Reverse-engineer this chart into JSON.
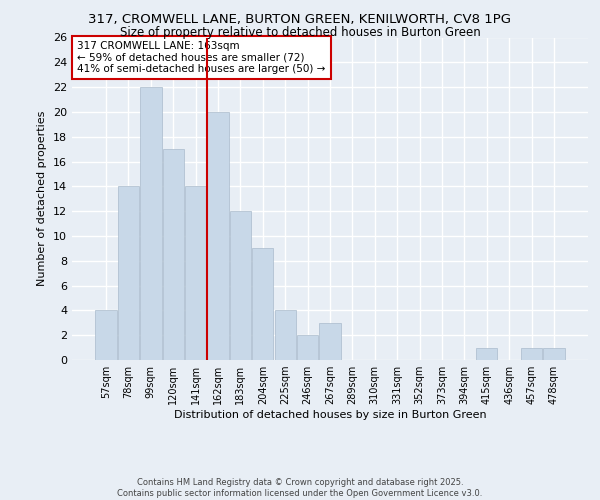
{
  "title1": "317, CROMWELL LANE, BURTON GREEN, KENILWORTH, CV8 1PG",
  "title2": "Size of property relative to detached houses in Burton Green",
  "xlabel": "Distribution of detached houses by size in Burton Green",
  "ylabel": "Number of detached properties",
  "categories": [
    "57sqm",
    "78sqm",
    "99sqm",
    "120sqm",
    "141sqm",
    "162sqm",
    "183sqm",
    "204sqm",
    "225sqm",
    "246sqm",
    "267sqm",
    "289sqm",
    "310sqm",
    "331sqm",
    "352sqm",
    "373sqm",
    "394sqm",
    "415sqm",
    "436sqm",
    "457sqm",
    "478sqm"
  ],
  "values": [
    4,
    14,
    22,
    17,
    14,
    20,
    12,
    9,
    4,
    2,
    3,
    0,
    0,
    0,
    0,
    0,
    0,
    1,
    0,
    1,
    1
  ],
  "bar_color": "#c8d8e8",
  "bar_edgecolor": "#aabbcc",
  "vline_index": 5,
  "ylim": [
    0,
    26
  ],
  "yticks": [
    0,
    2,
    4,
    6,
    8,
    10,
    12,
    14,
    16,
    18,
    20,
    22,
    24,
    26
  ],
  "annotation_text": "317 CROMWELL LANE: 163sqm\n← 59% of detached houses are smaller (72)\n41% of semi-detached houses are larger (50) →",
  "annotation_box_color": "#ffffff",
  "annotation_box_edgecolor": "#cc0000",
  "footnote": "Contains HM Land Registry data © Crown copyright and database right 2025.\nContains public sector information licensed under the Open Government Licence v3.0.",
  "background_color": "#e8eef5",
  "grid_color": "#ffffff"
}
